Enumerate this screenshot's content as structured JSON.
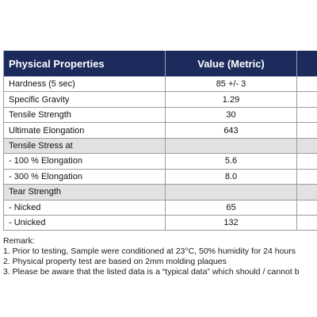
{
  "colors": {
    "header_bg": "#1c2a5c",
    "header_text": "#ffffff",
    "section_bg": "#e2e2e2"
  },
  "table": {
    "headers": [
      "Physical Properties",
      "Value (Metric)",
      ""
    ],
    "rows": [
      {
        "property": "Hardness (5 sec)",
        "value": "85 +/- 3",
        "section": false
      },
      {
        "property": "Specific Gravity",
        "value": "1.29",
        "section": false
      },
      {
        "property": "Tensile Strength",
        "value": "30",
        "section": false
      },
      {
        "property": "Ultimate Elongation",
        "value": "643",
        "section": false
      },
      {
        "property": "Tensile Stress at",
        "value": "",
        "section": true
      },
      {
        "property": "- 100 % Elongation",
        "value": "5.6",
        "section": false
      },
      {
        "property": "- 300 % Elongation",
        "value": "8.0",
        "section": false
      },
      {
        "property": "Tear Strength",
        "value": "",
        "section": true
      },
      {
        "property": "- Nicked",
        "value": "65",
        "section": false
      },
      {
        "property": "- Unicked",
        "value": "132",
        "section": false
      }
    ]
  },
  "remarks": {
    "title": "Remark:",
    "lines": [
      "1. Prior to testing, Sample were conditioned at 23°C, 50% humidity for 24 hours",
      "2. Physical property test are based on 2mm molding plaques",
      "3. Please be aware that the listed data is a “typical data” which should / cannot b"
    ]
  }
}
